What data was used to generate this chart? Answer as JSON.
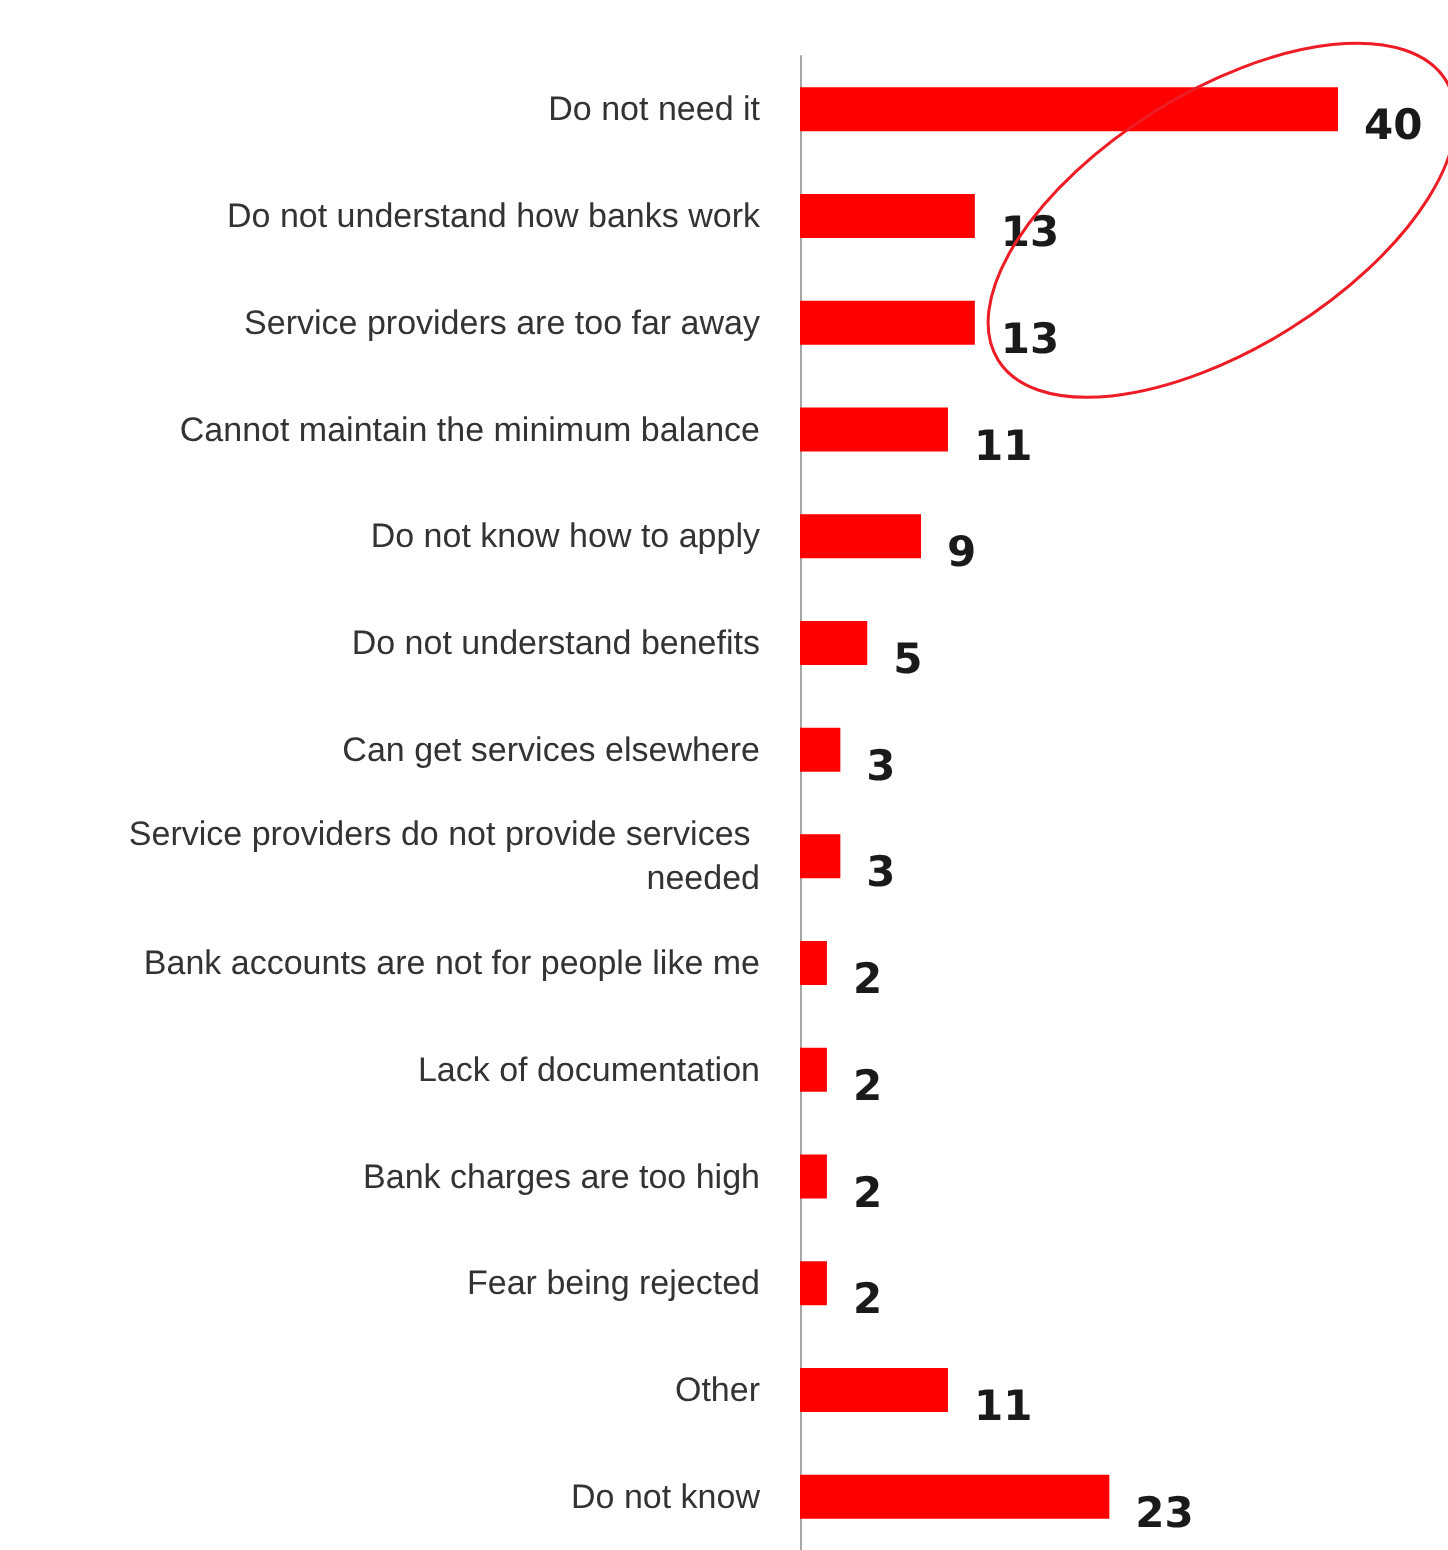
{
  "chart_data": {
    "type": "bar",
    "orientation": "horizontal",
    "categories": [
      "Do not need it",
      "Do not understand how banks work",
      "Service providers are too far away",
      "Cannot maintain the minimum balance",
      "Do not know how to apply",
      "Do not understand benefits",
      "Can get services elsewhere",
      "Service providers do not provide services needed",
      "Bank accounts are not for people like me",
      "Lack of documentation",
      "Bank charges are too high",
      "Fear being rejected",
      "Other",
      "Do not know"
    ],
    "values": [
      40,
      13,
      13,
      11,
      9,
      5,
      3,
      3,
      2,
      2,
      2,
      2,
      11,
      23
    ],
    "color": "#ff0000",
    "data_labels": true
  }
}
